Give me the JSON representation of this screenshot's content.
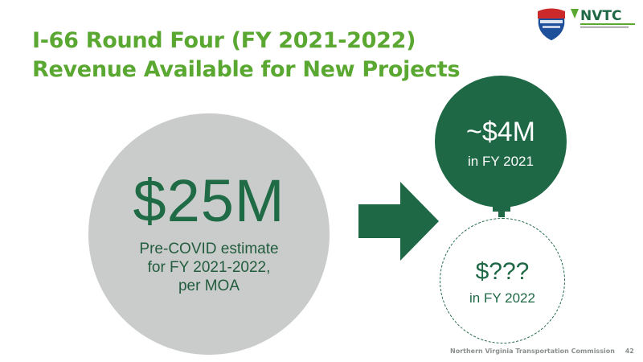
{
  "title": {
    "line1": "I-66 Round Four (FY 2021-2022)",
    "line2": "Revenue Available for New Projects"
  },
  "logos": {
    "shield_icon": "commuter-choice-shield-icon",
    "nvtc_text": "NVTC"
  },
  "main_circle": {
    "amount": "$25M",
    "desc_line1": "Pre-COVID estimate",
    "desc_line2": "for FY 2021-2022,",
    "desc_line3": "per MOA"
  },
  "fy2021_circle": {
    "amount": "~$4M",
    "label": "in FY 2021"
  },
  "fy2022_circle": {
    "amount": "$???",
    "label": "in FY 2022"
  },
  "footer": {
    "org": "Northern Virginia Transportation Commission",
    "page": "42"
  },
  "colors": {
    "title_green": "#5aa832",
    "dark_green": "#1e6845",
    "circle_gray": "#c9ccca"
  }
}
